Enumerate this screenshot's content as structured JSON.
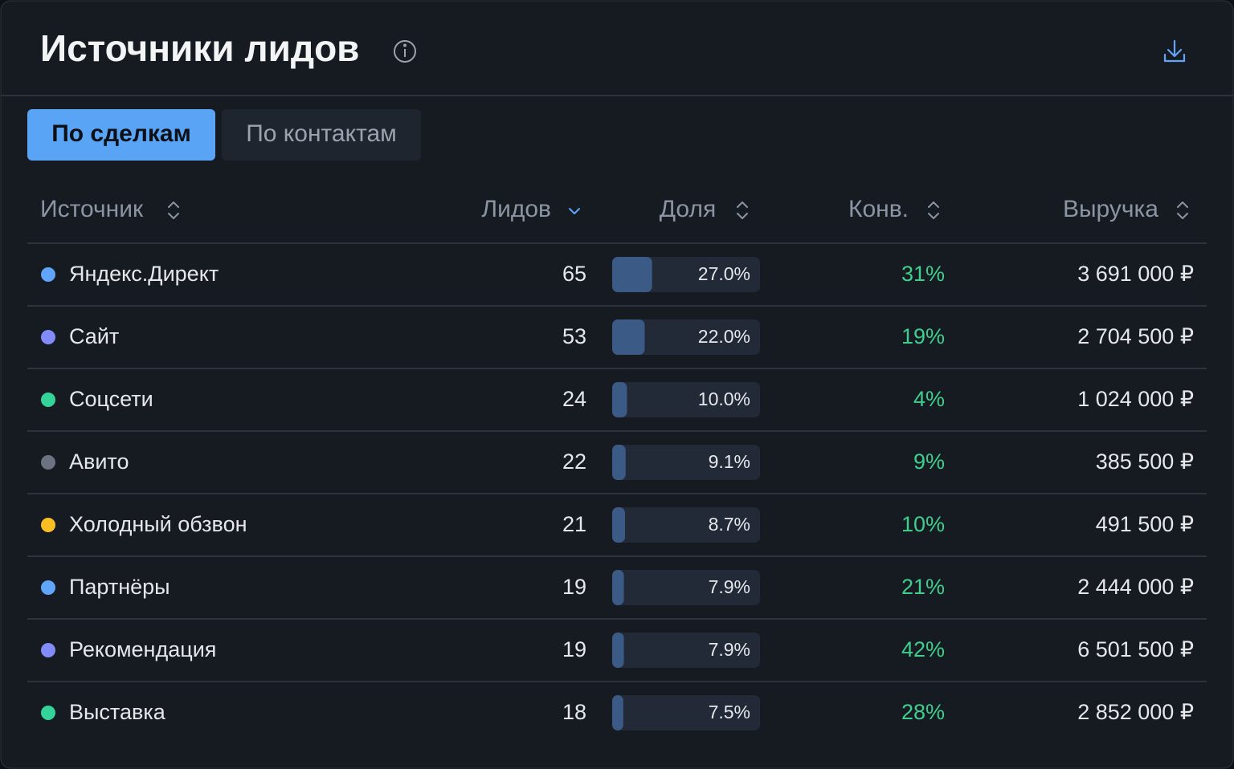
{
  "header": {
    "title": "Источники лидов"
  },
  "tabs": [
    {
      "label": "По сделкам",
      "active": true
    },
    {
      "label": "По контактам",
      "active": false
    }
  ],
  "table": {
    "columns": [
      "Источник",
      "Лидов",
      "Доля",
      "Конв.",
      "Выручка"
    ],
    "rows": [
      {
        "name": "Яндекс.Директ",
        "color": "#60a5fa",
        "leads": 65,
        "share": {
          "value": 27.0,
          "label": "27.0%"
        },
        "conv": "31%",
        "revenue": "3 691 000 ₽"
      },
      {
        "name": "Сайт",
        "color": "#818cf8",
        "leads": 53,
        "share": {
          "value": 22.0,
          "label": "22.0%"
        },
        "conv": "19%",
        "revenue": "2 704 500 ₽"
      },
      {
        "name": "Соцсети",
        "color": "#34d399",
        "leads": 24,
        "share": {
          "value": 10.0,
          "label": "10.0%"
        },
        "conv": "4%",
        "revenue": "1 024 000 ₽"
      },
      {
        "name": "Авито",
        "color": "#6b7280",
        "leads": 22,
        "share": {
          "value": 9.1,
          "label": "9.1%"
        },
        "conv": "9%",
        "revenue": "385 500 ₽"
      },
      {
        "name": "Холодный обзвон",
        "color": "#fbbf24",
        "leads": 21,
        "share": {
          "value": 8.7,
          "label": "8.7%"
        },
        "conv": "10%",
        "revenue": "491 500 ₽"
      },
      {
        "name": "Партнёры",
        "color": "#60a5fa",
        "leads": 19,
        "share": {
          "value": 7.9,
          "label": "7.9%"
        },
        "conv": "21%",
        "revenue": "2 444 000 ₽"
      },
      {
        "name": "Рекомендация",
        "color": "#818cf8",
        "leads": 19,
        "share": {
          "value": 7.9,
          "label": "7.9%"
        },
        "conv": "42%",
        "revenue": "6 501 500 ₽"
      },
      {
        "name": "Выставка",
        "color": "#34d399",
        "leads": 18,
        "share": {
          "value": 7.5,
          "label": "7.5%"
        },
        "conv": "28%",
        "revenue": "2 852 000 ₽"
      }
    ]
  }
}
